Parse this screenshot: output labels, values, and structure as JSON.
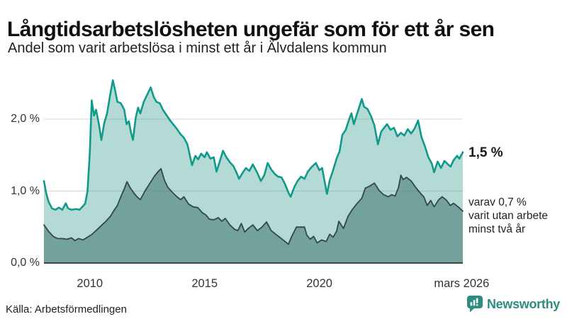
{
  "chart_data": {
    "type": "area",
    "title": "Långtidsarbetslösheten ungefär som för ett år sen",
    "subtitle": "Andel som varit arbetslösa i minst ett år i Älvdalens kommun",
    "x_domain": [
      2008.0,
      2026.25
    ],
    "y_domain": [
      0,
      2.67
    ],
    "grid": true,
    "grid_color": "rgba(110,125,135,0.30)",
    "axis_color": "#37474a",
    "y_ticks": [
      {
        "value": 0,
        "label": "0,0 %"
      },
      {
        "value": 1,
        "label": "1,0 %"
      },
      {
        "value": 2,
        "label": "2,0 %"
      }
    ],
    "x_ticks": [
      {
        "value": 2010,
        "label": "2010"
      },
      {
        "value": 2015,
        "label": "2015"
      },
      {
        "value": 2020,
        "label": "2020"
      },
      {
        "value": 2026.2,
        "label": "mars 2026"
      }
    ],
    "series": [
      {
        "name": "Andel arbetslösa minst ett år",
        "line_color": "#0f9a8b",
        "fill_color": "#b3dad4",
        "line_width": 2.6,
        "points": [
          [
            2008.0,
            1.14
          ],
          [
            2008.1,
            0.97
          ],
          [
            2008.2,
            0.85
          ],
          [
            2008.35,
            0.76
          ],
          [
            2008.5,
            0.74
          ],
          [
            2008.65,
            0.77
          ],
          [
            2008.8,
            0.74
          ],
          [
            2008.95,
            0.83
          ],
          [
            2009.05,
            0.76
          ],
          [
            2009.2,
            0.74
          ],
          [
            2009.4,
            0.75
          ],
          [
            2009.55,
            0.74
          ],
          [
            2009.7,
            0.79
          ],
          [
            2009.8,
            0.83
          ],
          [
            2009.9,
            1.0
          ],
          [
            2010.0,
            1.55
          ],
          [
            2010.08,
            2.26
          ],
          [
            2010.18,
            2.05
          ],
          [
            2010.27,
            2.13
          ],
          [
            2010.4,
            1.92
          ],
          [
            2010.5,
            1.71
          ],
          [
            2010.63,
            1.95
          ],
          [
            2010.75,
            2.08
          ],
          [
            2010.88,
            2.33
          ],
          [
            2011.0,
            2.54
          ],
          [
            2011.1,
            2.4
          ],
          [
            2011.2,
            2.24
          ],
          [
            2011.35,
            2.22
          ],
          [
            2011.5,
            2.13
          ],
          [
            2011.6,
            1.93
          ],
          [
            2011.7,
            1.97
          ],
          [
            2011.8,
            1.8
          ],
          [
            2011.88,
            1.71
          ],
          [
            2012.0,
            2.02
          ],
          [
            2012.1,
            2.16
          ],
          [
            2012.2,
            2.08
          ],
          [
            2012.35,
            2.24
          ],
          [
            2012.5,
            2.34
          ],
          [
            2012.65,
            2.44
          ],
          [
            2012.78,
            2.31
          ],
          [
            2012.9,
            2.24
          ],
          [
            2013.05,
            2.22
          ],
          [
            2013.2,
            2.12
          ],
          [
            2013.35,
            2.05
          ],
          [
            2013.5,
            1.98
          ],
          [
            2013.65,
            1.92
          ],
          [
            2013.8,
            1.86
          ],
          [
            2013.95,
            1.79
          ],
          [
            2014.1,
            1.74
          ],
          [
            2014.25,
            1.65
          ],
          [
            2014.45,
            1.36
          ],
          [
            2014.6,
            1.49
          ],
          [
            2014.72,
            1.44
          ],
          [
            2014.85,
            1.52
          ],
          [
            2015.0,
            1.47
          ],
          [
            2015.1,
            1.54
          ],
          [
            2015.25,
            1.45
          ],
          [
            2015.4,
            1.47
          ],
          [
            2015.52,
            1.27
          ],
          [
            2015.65,
            1.4
          ],
          [
            2015.8,
            1.56
          ],
          [
            2015.95,
            1.47
          ],
          [
            2016.1,
            1.4
          ],
          [
            2016.25,
            1.35
          ],
          [
            2016.4,
            1.25
          ],
          [
            2016.5,
            1.17
          ],
          [
            2016.65,
            1.25
          ],
          [
            2016.8,
            1.32
          ],
          [
            2016.95,
            1.28
          ],
          [
            2017.1,
            1.37
          ],
          [
            2017.3,
            1.25
          ],
          [
            2017.45,
            1.14
          ],
          [
            2017.6,
            1.22
          ],
          [
            2017.75,
            1.39
          ],
          [
            2017.9,
            1.3
          ],
          [
            2018.05,
            1.24
          ],
          [
            2018.2,
            1.2
          ],
          [
            2018.35,
            1.19
          ],
          [
            2018.5,
            1.1
          ],
          [
            2018.65,
            0.98
          ],
          [
            2018.75,
            0.92
          ],
          [
            2018.9,
            1.05
          ],
          [
            2019.05,
            1.14
          ],
          [
            2019.2,
            1.2
          ],
          [
            2019.35,
            1.17
          ],
          [
            2019.5,
            1.27
          ],
          [
            2019.65,
            1.33
          ],
          [
            2019.85,
            1.39
          ],
          [
            2020.0,
            1.29
          ],
          [
            2020.12,
            1.32
          ],
          [
            2020.33,
            0.96
          ],
          [
            2020.45,
            1.15
          ],
          [
            2020.6,
            1.29
          ],
          [
            2020.75,
            1.45
          ],
          [
            2020.88,
            1.55
          ],
          [
            2021.0,
            1.78
          ],
          [
            2021.15,
            1.85
          ],
          [
            2021.3,
            2.0
          ],
          [
            2021.4,
            2.08
          ],
          [
            2021.5,
            1.93
          ],
          [
            2021.62,
            2.05
          ],
          [
            2021.72,
            2.15
          ],
          [
            2021.85,
            2.28
          ],
          [
            2021.95,
            2.17
          ],
          [
            2022.1,
            2.14
          ],
          [
            2022.25,
            2.04
          ],
          [
            2022.4,
            1.91
          ],
          [
            2022.55,
            1.65
          ],
          [
            2022.7,
            1.83
          ],
          [
            2022.85,
            1.89
          ],
          [
            2022.95,
            1.93
          ],
          [
            2023.1,
            1.85
          ],
          [
            2023.25,
            1.88
          ],
          [
            2023.4,
            1.76
          ],
          [
            2023.55,
            1.81
          ],
          [
            2023.7,
            1.77
          ],
          [
            2023.85,
            1.86
          ],
          [
            2024.0,
            1.8
          ],
          [
            2024.15,
            1.87
          ],
          [
            2024.3,
            1.98
          ],
          [
            2024.45,
            1.75
          ],
          [
            2024.6,
            1.62
          ],
          [
            2024.75,
            1.47
          ],
          [
            2024.9,
            1.38
          ],
          [
            2025.0,
            1.26
          ],
          [
            2025.15,
            1.41
          ],
          [
            2025.3,
            1.32
          ],
          [
            2025.45,
            1.42
          ],
          [
            2025.6,
            1.37
          ],
          [
            2025.72,
            1.34
          ],
          [
            2025.85,
            1.43
          ],
          [
            2026.0,
            1.49
          ],
          [
            2026.1,
            1.45
          ],
          [
            2026.25,
            1.54
          ]
        ]
      },
      {
        "name": "Andel arbetslösa minst två år",
        "line_color": "#35454c",
        "fill_color": "#72a29b",
        "line_width": 1.8,
        "points": [
          [
            2008.0,
            0.53
          ],
          [
            2008.2,
            0.44
          ],
          [
            2008.4,
            0.37
          ],
          [
            2008.6,
            0.34
          ],
          [
            2008.8,
            0.34
          ],
          [
            2009.0,
            0.33
          ],
          [
            2009.2,
            0.35
          ],
          [
            2009.35,
            0.31
          ],
          [
            2009.5,
            0.34
          ],
          [
            2009.7,
            0.32
          ],
          [
            2009.9,
            0.36
          ],
          [
            2010.1,
            0.4
          ],
          [
            2010.3,
            0.46
          ],
          [
            2010.5,
            0.52
          ],
          [
            2010.7,
            0.58
          ],
          [
            2010.9,
            0.65
          ],
          [
            2011.05,
            0.73
          ],
          [
            2011.2,
            0.8
          ],
          [
            2011.35,
            0.92
          ],
          [
            2011.5,
            1.03
          ],
          [
            2011.62,
            1.13
          ],
          [
            2011.75,
            1.05
          ],
          [
            2011.9,
            0.98
          ],
          [
            2012.05,
            0.92
          ],
          [
            2012.2,
            0.88
          ],
          [
            2012.4,
            1.0
          ],
          [
            2012.6,
            1.1
          ],
          [
            2012.8,
            1.2
          ],
          [
            2013.0,
            1.28
          ],
          [
            2013.1,
            1.31
          ],
          [
            2013.25,
            1.15
          ],
          [
            2013.4,
            1.05
          ],
          [
            2013.6,
            0.98
          ],
          [
            2013.8,
            0.92
          ],
          [
            2013.95,
            0.88
          ],
          [
            2014.1,
            0.92
          ],
          [
            2014.3,
            0.82
          ],
          [
            2014.5,
            0.78
          ],
          [
            2014.7,
            0.77
          ],
          [
            2014.9,
            0.7
          ],
          [
            2015.05,
            0.67
          ],
          [
            2015.2,
            0.61
          ],
          [
            2015.4,
            0.6
          ],
          [
            2015.6,
            0.63
          ],
          [
            2015.75,
            0.58
          ],
          [
            2015.9,
            0.62
          ],
          [
            2016.1,
            0.53
          ],
          [
            2016.3,
            0.47
          ],
          [
            2016.45,
            0.45
          ],
          [
            2016.6,
            0.55
          ],
          [
            2016.75,
            0.43
          ],
          [
            2016.9,
            0.48
          ],
          [
            2017.1,
            0.53
          ],
          [
            2017.3,
            0.45
          ],
          [
            2017.5,
            0.5
          ],
          [
            2017.7,
            0.57
          ],
          [
            2017.9,
            0.45
          ],
          [
            2018.1,
            0.4
          ],
          [
            2018.3,
            0.35
          ],
          [
            2018.5,
            0.3
          ],
          [
            2018.65,
            0.26
          ],
          [
            2018.8,
            0.37
          ],
          [
            2019.0,
            0.5
          ],
          [
            2019.35,
            0.5
          ],
          [
            2019.45,
            0.39
          ],
          [
            2019.6,
            0.33
          ],
          [
            2019.75,
            0.37
          ],
          [
            2019.9,
            0.28
          ],
          [
            2020.1,
            0.32
          ],
          [
            2020.3,
            0.3
          ],
          [
            2020.45,
            0.4
          ],
          [
            2020.6,
            0.36
          ],
          [
            2020.75,
            0.44
          ],
          [
            2020.85,
            0.58
          ],
          [
            2021.05,
            0.48
          ],
          [
            2021.25,
            0.65
          ],
          [
            2021.45,
            0.75
          ],
          [
            2021.65,
            0.83
          ],
          [
            2021.85,
            0.9
          ],
          [
            2022.0,
            1.04
          ],
          [
            2022.2,
            1.07
          ],
          [
            2022.4,
            1.11
          ],
          [
            2022.6,
            1.01
          ],
          [
            2022.8,
            0.95
          ],
          [
            2023.0,
            0.92
          ],
          [
            2023.15,
            0.95
          ],
          [
            2023.3,
            0.93
          ],
          [
            2023.45,
            1.05
          ],
          [
            2023.55,
            1.22
          ],
          [
            2023.65,
            1.16
          ],
          [
            2023.8,
            1.19
          ],
          [
            2024.0,
            1.14
          ],
          [
            2024.2,
            1.05
          ],
          [
            2024.4,
            0.97
          ],
          [
            2024.55,
            0.92
          ],
          [
            2024.7,
            0.8
          ],
          [
            2024.85,
            0.87
          ],
          [
            2025.0,
            0.78
          ],
          [
            2025.2,
            0.88
          ],
          [
            2025.35,
            0.92
          ],
          [
            2025.55,
            0.87
          ],
          [
            2025.7,
            0.8
          ],
          [
            2025.85,
            0.83
          ],
          [
            2026.05,
            0.78
          ],
          [
            2026.25,
            0.72
          ]
        ]
      }
    ]
  },
  "annotations": {
    "primary": {
      "label": "1,5 %",
      "value": 1.54
    },
    "secondary": {
      "value": 0.72,
      "lines": [
        "varav 0,7 %",
        "varit utan arbete",
        "minst två år"
      ]
    }
  },
  "footer": {
    "source": "Källa: Arbetsförmedlingen",
    "brand": "Newsworthy",
    "brand_color": "#2e8c83"
  }
}
